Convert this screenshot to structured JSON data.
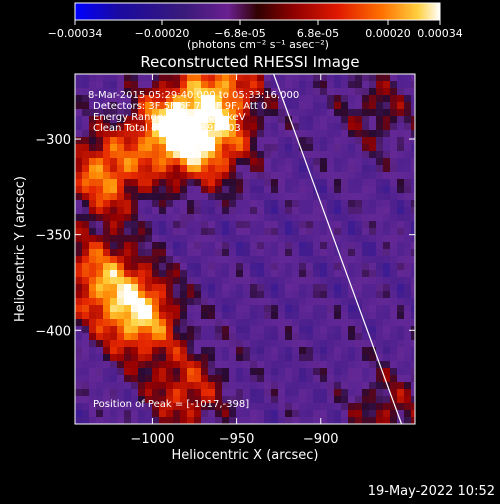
{
  "colors": {
    "background": "#000000",
    "foreground": "#ffffff",
    "limb_line": "#ffffff",
    "colormap": [
      "#0000ff",
      "#2a1070",
      "#3a1a7a",
      "#6a2090",
      "#800000",
      "#d01000",
      "#ff5a00",
      "#ffb020",
      "#ffffff"
    ]
  },
  "colorbar": {
    "ticks": [
      "-0.00034",
      "-0.00020",
      "-6.8e-05",
      "6.8e-05",
      "0.00020",
      "0.00034"
    ],
    "units_text": "(photons cm⁻² s⁻¹ asec⁻²)",
    "range": [
      -0.00034,
      0.00034
    ]
  },
  "annotations": {
    "time": "8-Mar-2015 05:29:40.000 to 05:33:16.000",
    "detectors": "Detectors: 3F 5F 6F 7F 8F 9F, Att 0",
    "energy": "Energy Range: 25.0 - 50.0 keV",
    "clean": "Clean      Total counts: 3.69E+03",
    "peak": "Position of Peak = [-1017,-398]"
  },
  "footer": {
    "date": "19-May-2022 10:52"
  },
  "chart_data": {
    "type": "heatmap",
    "title": "Reconstructed RHESSI Image",
    "xlabel": "Heliocentric X (arcsec)",
    "ylabel": "Heliocentric Y (arcsec)",
    "xlim": [
      -1046,
      -844
    ],
    "ylim": [
      -449,
      -266
    ],
    "x_ticks": [
      {
        "value": -1000,
        "label": "−1000"
      },
      {
        "value": -950,
        "label": "−950"
      },
      {
        "value": -900,
        "label": "−900"
      }
    ],
    "y_ticks": [
      {
        "value": -300,
        "label": "−300"
      },
      {
        "value": -350,
        "label": "−350"
      },
      {
        "value": -400,
        "label": "−400"
      }
    ],
    "limb_line": [
      [
        -928,
        -266
      ],
      [
        -852,
        -449
      ]
    ],
    "peak": [
      -1017,
      -398
    ],
    "hotspots": [
      {
        "x": -988,
        "y": -295,
        "intensity": 0.00034
      },
      {
        "x": -1028,
        "y": -318,
        "intensity": 0.00025
      },
      {
        "x": -958,
        "y": -272,
        "intensity": 0.00022
      },
      {
        "x": -1008,
        "y": -392,
        "intensity": 0.0003
      },
      {
        "x": -1032,
        "y": -372,
        "intensity": 0.00022
      },
      {
        "x": -980,
        "y": -432,
        "intensity": 0.00018
      },
      {
        "x": -963,
        "y": -303,
        "intensity": 0.0002
      },
      {
        "x": -866,
        "y": -285,
        "intensity": 0.0001
      },
      {
        "x": -860,
        "y": -443,
        "intensity": 0.00012
      }
    ]
  }
}
